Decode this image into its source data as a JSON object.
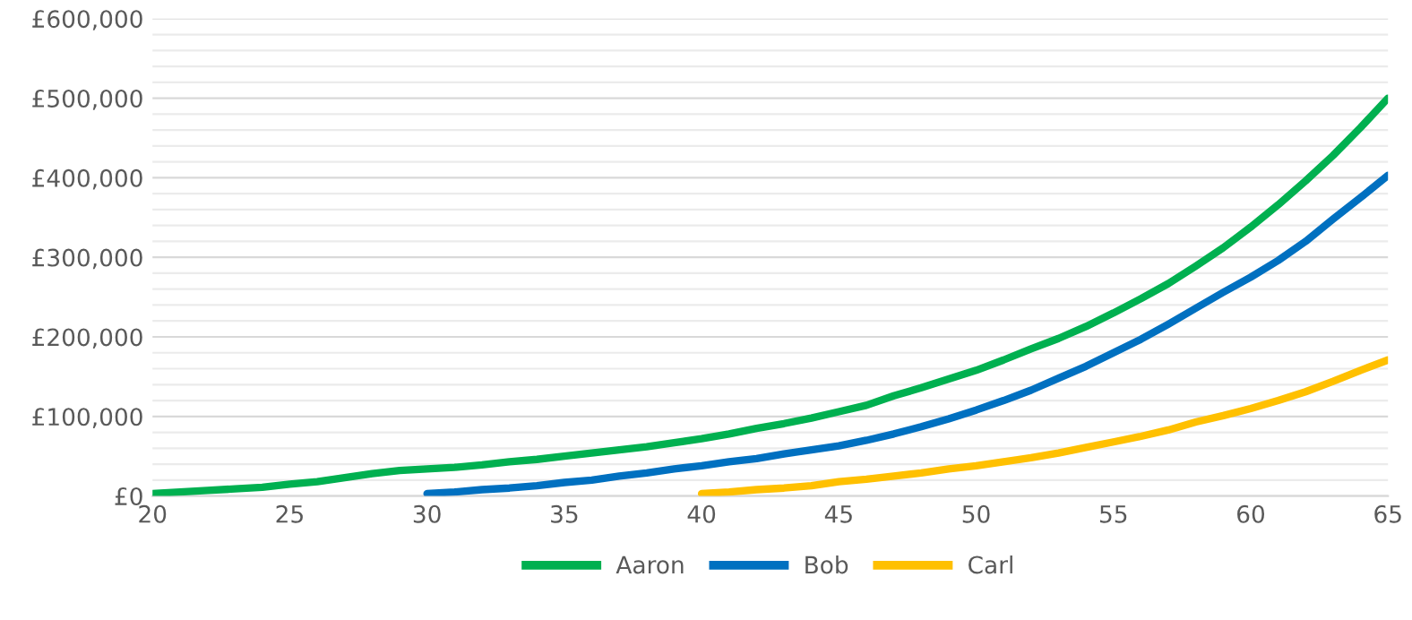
{
  "chart_data": {
    "type": "line",
    "xlim": [
      20,
      65
    ],
    "xticks": [
      20,
      25,
      30,
      35,
      40,
      45,
      50,
      55,
      60,
      65
    ],
    "ylim": [
      0,
      600000
    ],
    "yticks": [
      {
        "value": 0,
        "label": "£0"
      },
      {
        "value": 20000,
        "label": null
      },
      {
        "value": 40000,
        "label": null
      },
      {
        "value": 60000,
        "label": null
      },
      {
        "value": 80000,
        "label": null
      },
      {
        "value": 100000,
        "label": "£100,000"
      },
      {
        "value": 120000,
        "label": null
      },
      {
        "value": 140000,
        "label": null
      },
      {
        "value": 160000,
        "label": null
      },
      {
        "value": 180000,
        "label": null
      },
      {
        "value": 200000,
        "label": "£200,000"
      },
      {
        "value": 220000,
        "label": null
      },
      {
        "value": 240000,
        "label": null
      },
      {
        "value": 260000,
        "label": null
      },
      {
        "value": 280000,
        "label": null
      },
      {
        "value": 300000,
        "label": "£300,000"
      },
      {
        "value": 320000,
        "label": null
      },
      {
        "value": 340000,
        "label": null
      },
      {
        "value": 360000,
        "label": null
      },
      {
        "value": 380000,
        "label": null
      },
      {
        "value": 400000,
        "label": "£400,000"
      },
      {
        "value": 420000,
        "label": null
      },
      {
        "value": 440000,
        "label": null
      },
      {
        "value": 460000,
        "label": null
      },
      {
        "value": 480000,
        "label": null
      },
      {
        "value": 500000,
        "label": "£500,000"
      },
      {
        "value": 520000,
        "label": null
      },
      {
        "value": 540000,
        "label": null
      },
      {
        "value": 560000,
        "label": null
      },
      {
        "value": 580000,
        "label": null
      },
      {
        "value": 600000,
        "label": "£600,000"
      }
    ],
    "grid": "y",
    "legend": "bottom",
    "marker": "none",
    "line_style": "solid",
    "series": [
      {
        "name": "Aaron",
        "color": "#00b050",
        "x": [
          20,
          21,
          22,
          23,
          24,
          25,
          26,
          27,
          28,
          29,
          30,
          31,
          32,
          33,
          34,
          35,
          36,
          37,
          38,
          39,
          40,
          41,
          42,
          43,
          44,
          45,
          46,
          47,
          48,
          49,
          50,
          51,
          52,
          53,
          54,
          55,
          56,
          57,
          58,
          59,
          60,
          61,
          62,
          63,
          64,
          65
        ],
        "values": [
          3000,
          5000,
          7000,
          9000,
          11000,
          15000,
          18000,
          23000,
          28000,
          32000,
          34000,
          36000,
          39000,
          43000,
          46000,
          50000,
          54000,
          58000,
          62000,
          67000,
          72000,
          78000,
          85000,
          91000,
          98000,
          106000,
          114000,
          126000,
          136000,
          147000,
          158000,
          171000,
          185000,
          198000,
          213000,
          230000,
          248000,
          267000,
          289000,
          312000,
          338000,
          366000,
          396000,
          428000,
          463000,
          500000
        ]
      },
      {
        "name": "Bob",
        "color": "#0070c0",
        "x": [
          30,
          31,
          32,
          33,
          34,
          35,
          36,
          37,
          38,
          39,
          40,
          41,
          42,
          43,
          44,
          45,
          46,
          47,
          48,
          49,
          50,
          51,
          52,
          53,
          54,
          55,
          56,
          57,
          58,
          59,
          60,
          61,
          62,
          63,
          64,
          65
        ],
        "values": [
          3000,
          5000,
          8000,
          10000,
          13000,
          17000,
          20000,
          25000,
          29000,
          34000,
          38000,
          43000,
          47000,
          53000,
          58000,
          63000,
          70000,
          78000,
          87000,
          97000,
          108000,
          120000,
          133000,
          148000,
          163000,
          180000,
          197000,
          216000,
          236000,
          256000,
          275000,
          296000,
          320000,
          348000,
          375000,
          403000
        ]
      },
      {
        "name": "Carl",
        "color": "#ffc000",
        "x": [
          40,
          41,
          42,
          43,
          44,
          45,
          46,
          47,
          48,
          49,
          50,
          51,
          52,
          53,
          54,
          55,
          56,
          57,
          58,
          59,
          60,
          61,
          62,
          63,
          64,
          65
        ],
        "values": [
          3000,
          5000,
          8000,
          10000,
          13000,
          18000,
          21000,
          25000,
          29000,
          34000,
          38000,
          43000,
          48000,
          54000,
          61000,
          68000,
          75000,
          83000,
          93000,
          101000,
          110000,
          120000,
          131000,
          144000,
          158000,
          171000
        ]
      }
    ]
  }
}
